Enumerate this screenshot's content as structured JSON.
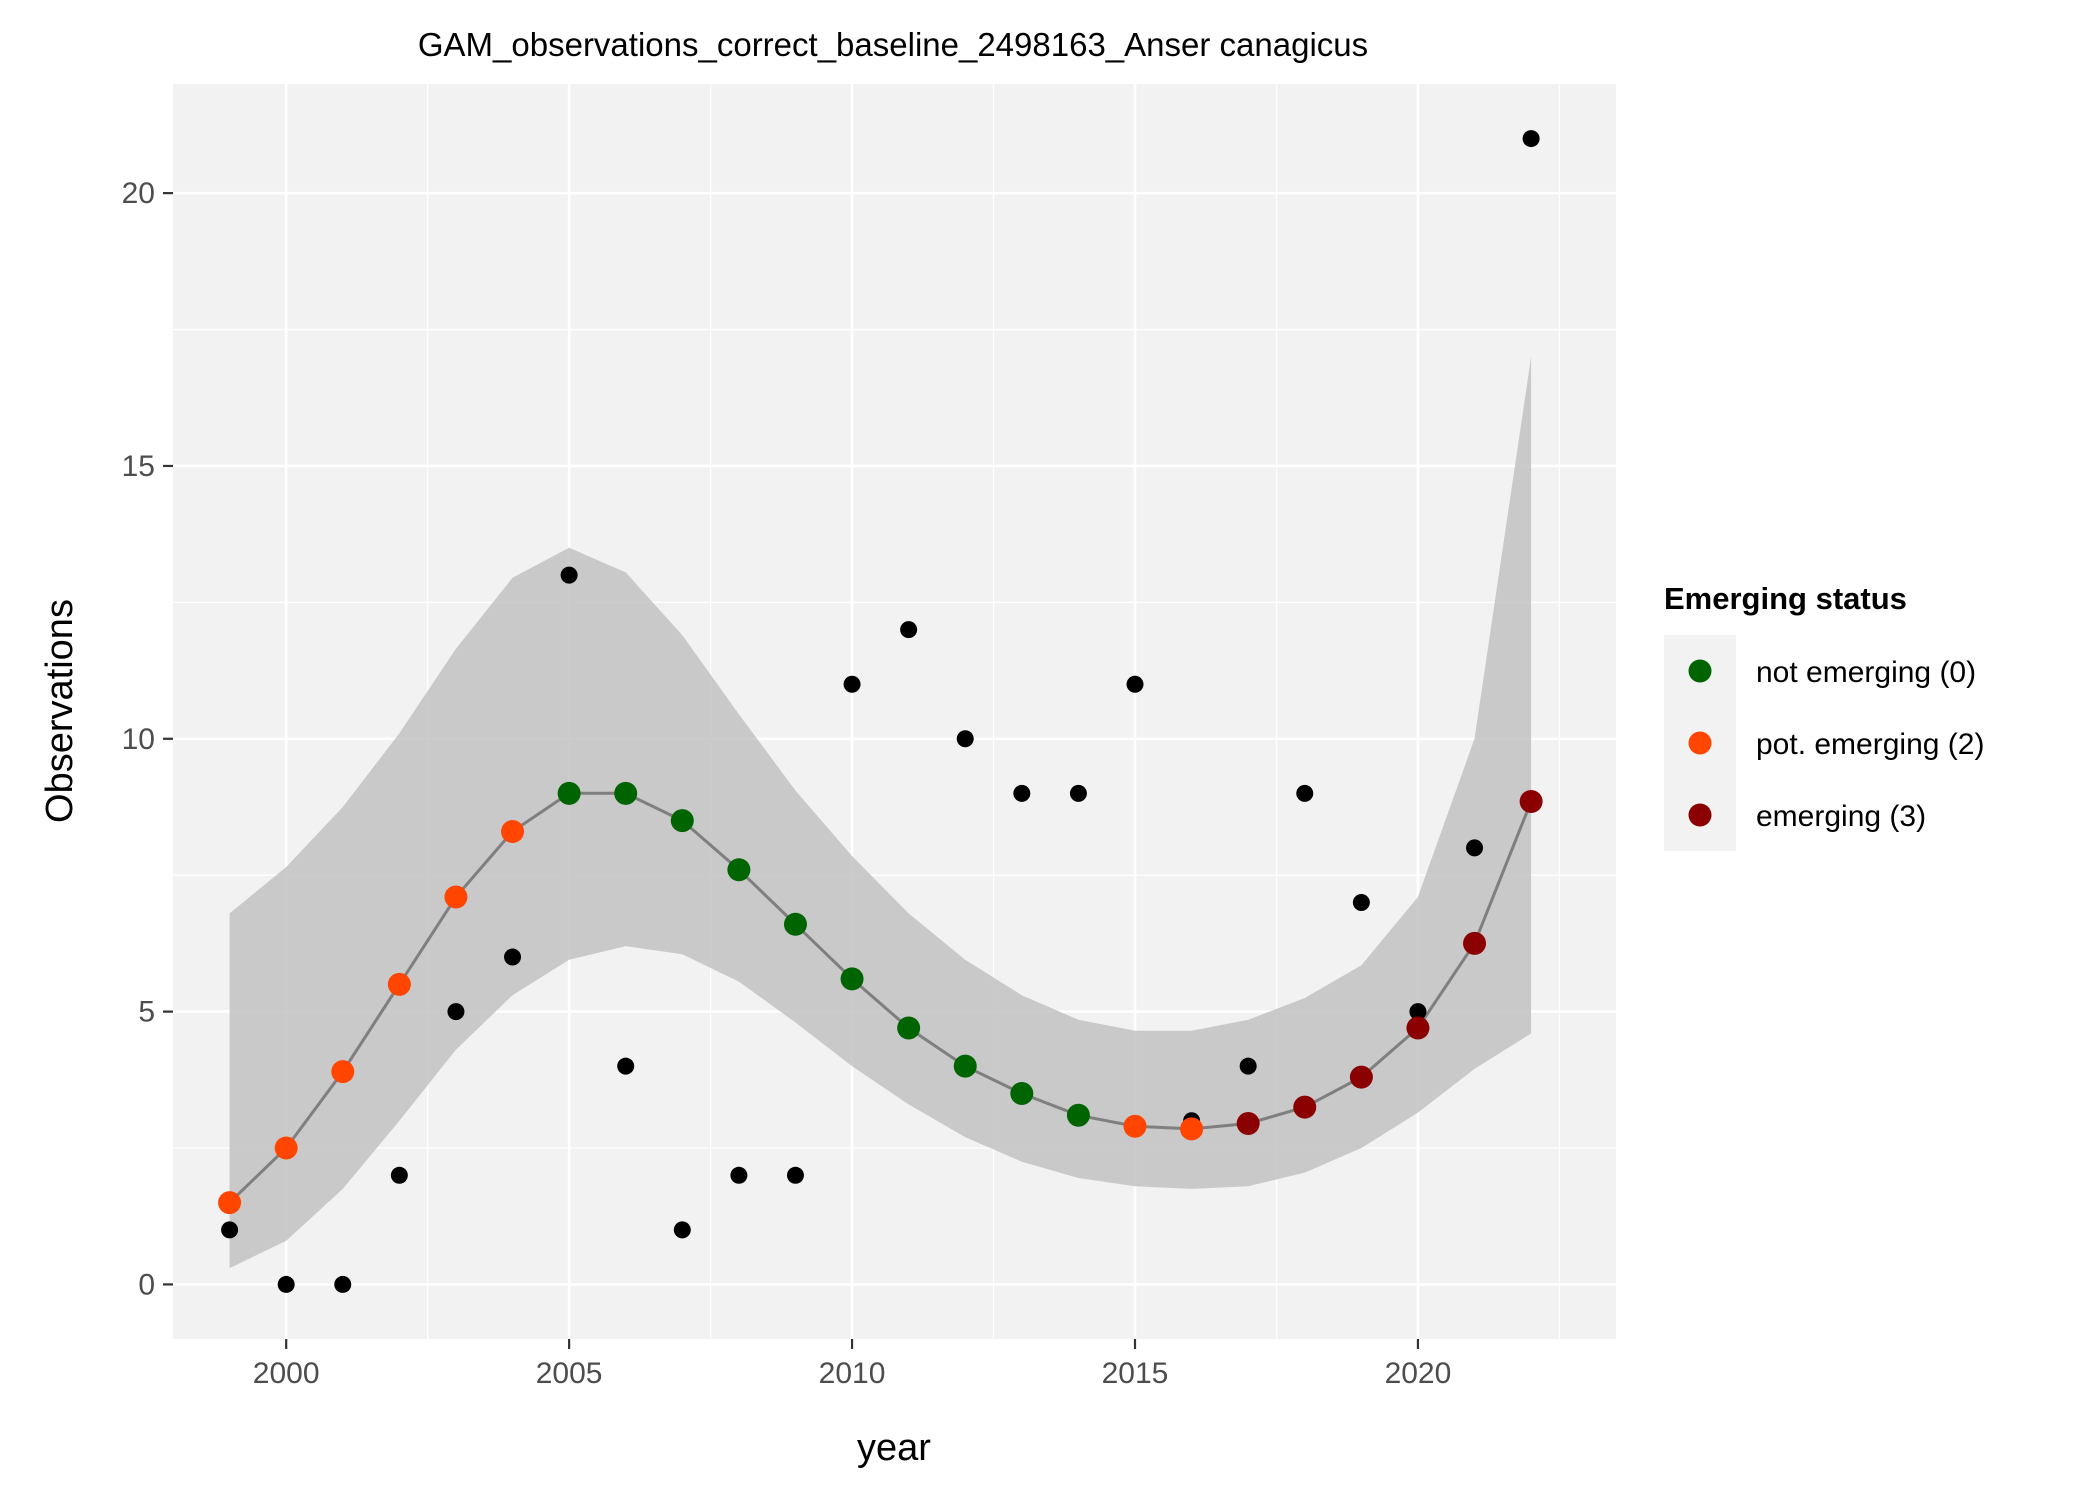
{
  "chart_data": {
    "type": "scatter",
    "title": "GAM_observations_correct_baseline_2498163_Anser canagicus",
    "xlabel": "year",
    "ylabel": "Observations",
    "xlim": [
      1998,
      2023.5
    ],
    "ylim": [
      -1,
      22
    ],
    "x_ticks": [
      2000,
      2005,
      2010,
      2015,
      2020
    ],
    "x_tick_labels": [
      "2000",
      "2005",
      "2010",
      "2015",
      "2020"
    ],
    "y_ticks": [
      0,
      5,
      10,
      15,
      20
    ],
    "y_tick_labels": [
      "0",
      "5",
      "10",
      "15",
      "20"
    ],
    "grid": true,
    "legend": {
      "title": "Emerging status",
      "position": "right",
      "entries": [
        {
          "label": "not emerging (0)",
          "color": "#006400",
          "code": 0
        },
        {
          "label": "pot. emerging (2)",
          "color": "#FF4500",
          "code": 2
        },
        {
          "label": "emerging (3)",
          "color": "#8B0000",
          "code": 3
        }
      ]
    },
    "colors": {
      "panel": "#F2F2F2",
      "grid": "#FFFFFF",
      "ribbon": "#BEBEBE",
      "line": "#7F7F7F",
      "observed": "#000000"
    },
    "observed": {
      "x": [
        1999,
        2000,
        2001,
        2002,
        2003,
        2004,
        2005,
        2006,
        2007,
        2008,
        2009,
        2010,
        2011,
        2012,
        2013,
        2014,
        2015,
        2016,
        2017,
        2018,
        2019,
        2020,
        2021,
        2022
      ],
      "y": [
        1,
        0,
        0,
        2,
        5,
        6,
        13,
        4,
        1,
        2,
        2,
        11,
        12,
        10,
        9,
        9,
        11,
        3,
        4,
        9,
        7,
        5,
        8,
        21
      ]
    },
    "fitted": {
      "x": [
        1999,
        2000,
        2001,
        2002,
        2003,
        2004,
        2005,
        2006,
        2007,
        2008,
        2009,
        2010,
        2011,
        2012,
        2013,
        2014,
        2015,
        2016,
        2017,
        2018,
        2019,
        2020,
        2021,
        2022
      ],
      "y": [
        1.5,
        2.5,
        3.9,
        5.5,
        7.1,
        8.3,
        9.0,
        9.0,
        8.5,
        7.6,
        6.6,
        5.6,
        4.7,
        4.0,
        3.5,
        3.1,
        2.9,
        2.85,
        2.95,
        3.25,
        3.8,
        4.7,
        6.25,
        8.85
      ],
      "lower": [
        0.3,
        0.8,
        1.75,
        3.0,
        4.3,
        5.3,
        5.95,
        6.2,
        6.05,
        5.55,
        4.8,
        4.0,
        3.3,
        2.7,
        2.25,
        1.95,
        1.8,
        1.75,
        1.8,
        2.05,
        2.5,
        3.15,
        3.95,
        4.6
      ],
      "upper": [
        6.8,
        7.65,
        8.75,
        10.1,
        11.65,
        12.95,
        13.5,
        13.05,
        11.9,
        10.45,
        9.05,
        7.85,
        6.8,
        5.95,
        5.3,
        4.85,
        4.65,
        4.65,
        4.85,
        5.25,
        5.85,
        7.1,
        10.0,
        17.0
      ],
      "status": [
        2,
        2,
        2,
        2,
        2,
        2,
        0,
        0,
        0,
        0,
        0,
        0,
        0,
        0,
        0,
        0,
        2,
        2,
        3,
        3,
        3,
        3,
        3,
        3
      ]
    }
  }
}
